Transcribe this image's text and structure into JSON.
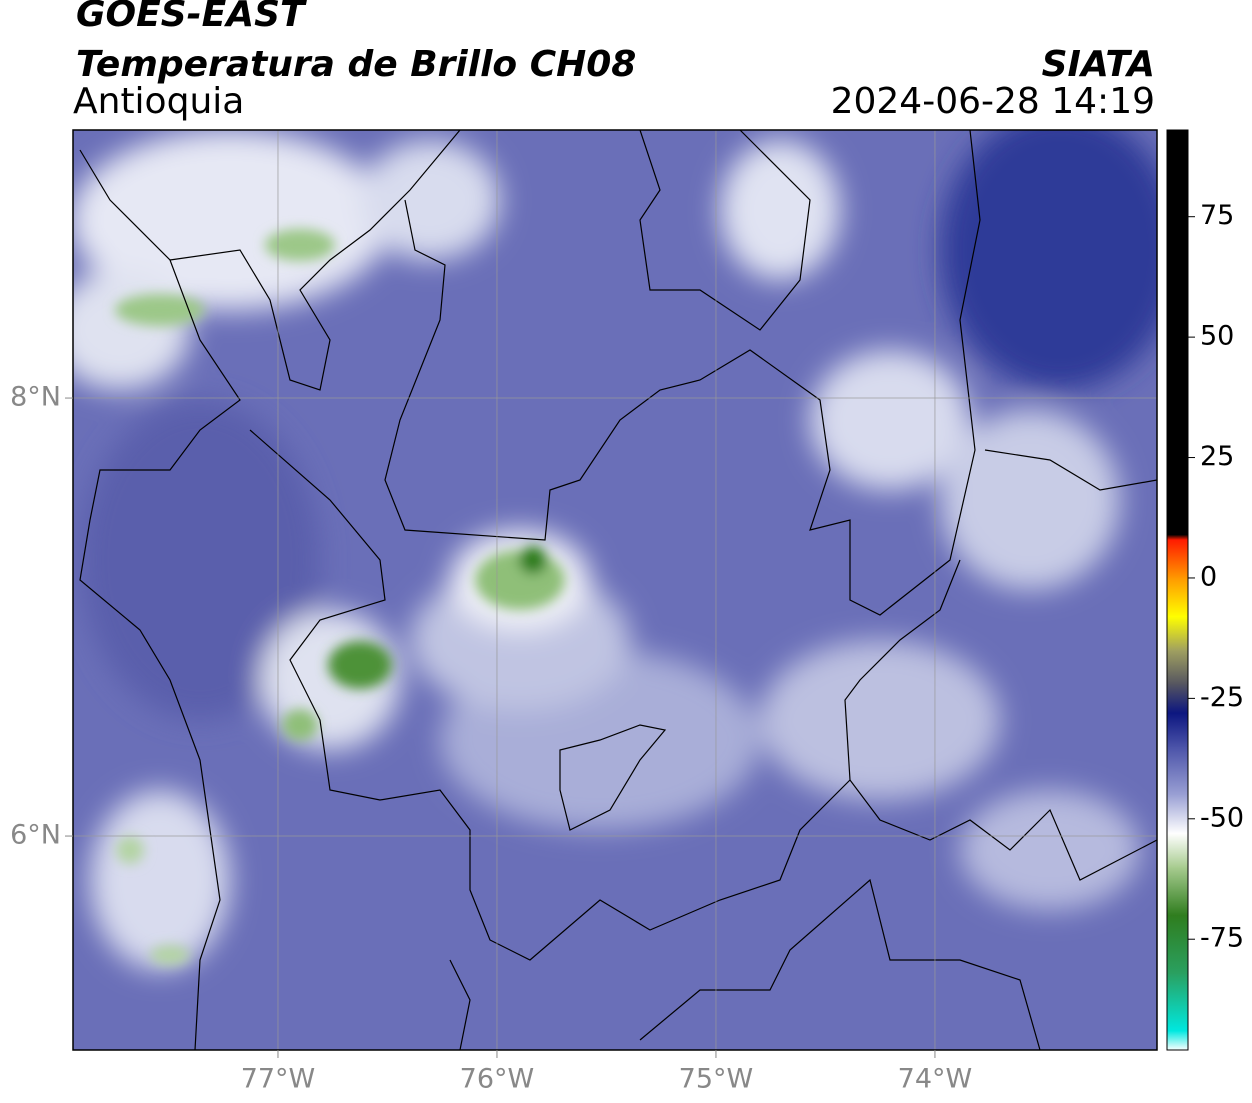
{
  "header": {
    "title": "GOES-EAST",
    "subtitle": "Temperatura de Brillo CH08",
    "region": "Antioquia",
    "source": "SIATA",
    "timestamp": "2024-06-28 14:19"
  },
  "map": {
    "xlim": [
      -77.936,
      -72.986
    ],
    "ylim": [
      5.023,
      9.224
    ],
    "xticks": [
      {
        "value": -77,
        "label": "77°W"
      },
      {
        "value": -76,
        "label": "76°W"
      },
      {
        "value": -75,
        "label": "75°W"
      },
      {
        "value": -74,
        "label": "74°W"
      }
    ],
    "yticks": [
      {
        "value": 6,
        "label": "6°N"
      },
      {
        "value": 8,
        "label": "8°N"
      }
    ],
    "grid": true
  },
  "colorbar": {
    "clim": [
      -98,
      93
    ],
    "ticks": [
      75,
      50,
      25,
      0,
      -25,
      -50,
      -75
    ],
    "colormap": [
      {
        "value": -98,
        "color": "#ffffff"
      },
      {
        "value": -94,
        "color": "#00e8e0"
      },
      {
        "value": -82,
        "color": "#2aa060"
      },
      {
        "value": -70,
        "color": "#2f7d1e"
      },
      {
        "value": -60,
        "color": "#a8cc90"
      },
      {
        "value": -53,
        "color": "#ffffff"
      },
      {
        "value": -45,
        "color": "#9aa0d4"
      },
      {
        "value": -35,
        "color": "#4a52a8"
      },
      {
        "value": -28,
        "color": "#0c1680"
      },
      {
        "value": -22,
        "color": "#555560"
      },
      {
        "value": -15,
        "color": "#a0a060"
      },
      {
        "value": -8,
        "color": "#ffff00"
      },
      {
        "value": 0,
        "color": "#ff9900"
      },
      {
        "value": 8,
        "color": "#ff1a00"
      },
      {
        "value": 9,
        "color": "#000000"
      },
      {
        "value": 93,
        "color": "#000000"
      }
    ]
  }
}
